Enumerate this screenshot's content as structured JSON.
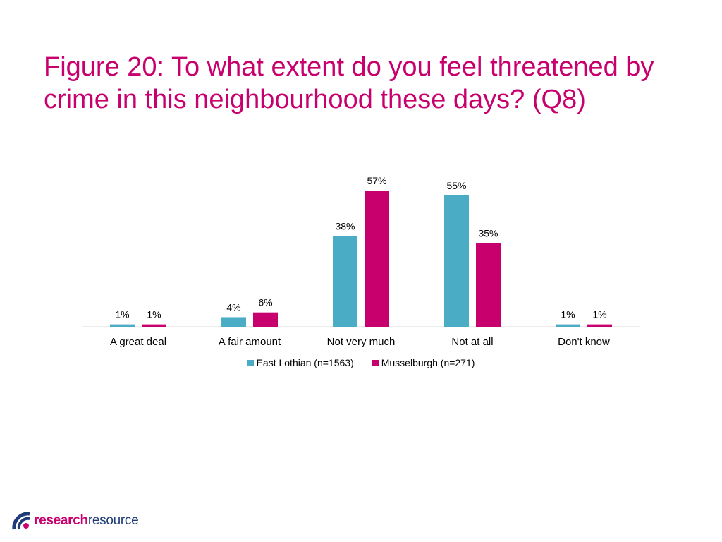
{
  "title": "Figure 20: To what extent do you feel threatened by crime in this neighbourhood these days? (Q8)",
  "chart_data": {
    "type": "bar",
    "categories": [
      "A great deal",
      "A fair amount",
      "Not very much",
      "Not at all",
      "Don't know"
    ],
    "series": [
      {
        "name": "East Lothian (n=1563)",
        "values": [
          1,
          4,
          38,
          55,
          1
        ],
        "color": "#4bacc6"
      },
      {
        "name": "Musselburgh (n=271)",
        "values": [
          1,
          6,
          57,
          35,
          1
        ],
        "color": "#c8006e"
      }
    ],
    "data_labels": [
      [
        "1%",
        "4%",
        "38%",
        "55%",
        "1%"
      ],
      [
        "1%",
        "6%",
        "57%",
        "35%",
        "1%"
      ]
    ],
    "ylim": [
      0,
      57
    ],
    "grid": false,
    "legend_position": "bottom"
  },
  "logo": {
    "part1": "research",
    "part2": "resource",
    "colors": {
      "arc_dark": "#1d3c78",
      "arc_accent": "#c8006e"
    }
  }
}
